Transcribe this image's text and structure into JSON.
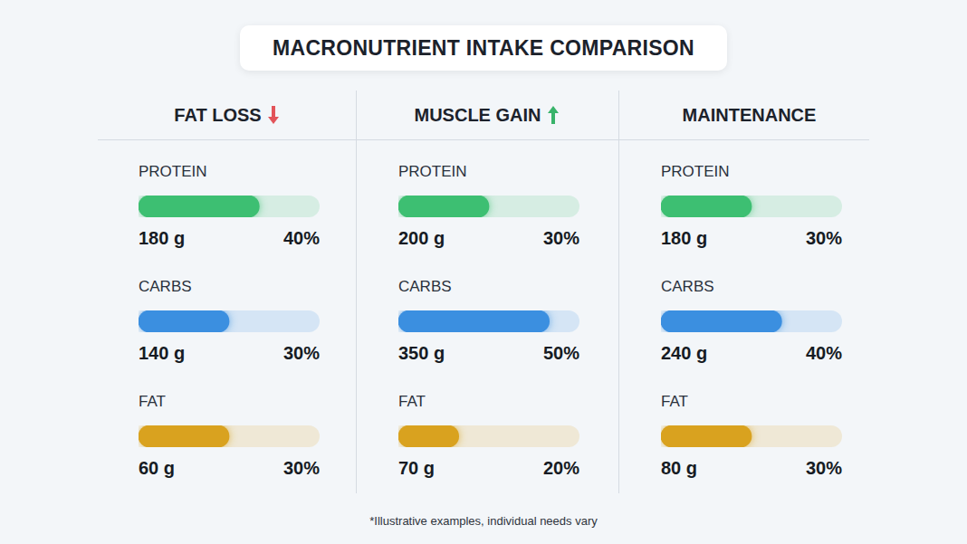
{
  "title": "MACRONUTRIENT INTAKE COMPARISON",
  "note": "*Illustrative examples, individual needs vary",
  "chart_data": [
    {
      "type": "bar",
      "title": "FAT LOSS",
      "orientation": "horizontal",
      "categories": [
        "PROTEIN",
        "CARBS",
        "FAT"
      ],
      "values": [
        40,
        30,
        30
      ],
      "value_labels": [
        "40%",
        "30%",
        "30%"
      ],
      "grams": [
        180,
        140,
        60
      ],
      "gram_labels": [
        "180 g",
        "140 g",
        "60 g"
      ],
      "colors": [
        "#3dbf72",
        "#3b8fe0",
        "#d9a21f"
      ],
      "xlim": [
        0,
        60
      ],
      "tick_labels": false,
      "grid": false,
      "data_labels": true
    },
    {
      "type": "bar",
      "title": "MUSCLE GAIN",
      "orientation": "horizontal",
      "categories": [
        "PROTEIN",
        "CARBS",
        "FAT"
      ],
      "values": [
        30,
        50,
        20
      ],
      "value_labels": [
        "30%",
        "50%",
        "20%"
      ],
      "grams": [
        200,
        350,
        70
      ],
      "gram_labels": [
        "200 g",
        "350 g",
        "70 g"
      ],
      "colors": [
        "#3dbf72",
        "#3b8fe0",
        "#d9a21f"
      ],
      "xlim": [
        0,
        60
      ],
      "tick_labels": false,
      "grid": false,
      "data_labels": true
    },
    {
      "type": "bar",
      "title": "MAINTENANCE",
      "orientation": "horizontal",
      "categories": [
        "PROTEIN",
        "CARBS",
        "FAT"
      ],
      "values": [
        30,
        40,
        30
      ],
      "value_labels": [
        "30%",
        "40%",
        "30%"
      ],
      "grams": [
        180,
        240,
        80
      ],
      "gram_labels": [
        "180 g",
        "240 g",
        "80 g"
      ],
      "colors": [
        "#3dbf72",
        "#3b8fe0",
        "#d9a21f"
      ],
      "xlim": [
        0,
        60
      ],
      "tick_labels": false,
      "grid": false,
      "data_labels": true
    }
  ]
}
